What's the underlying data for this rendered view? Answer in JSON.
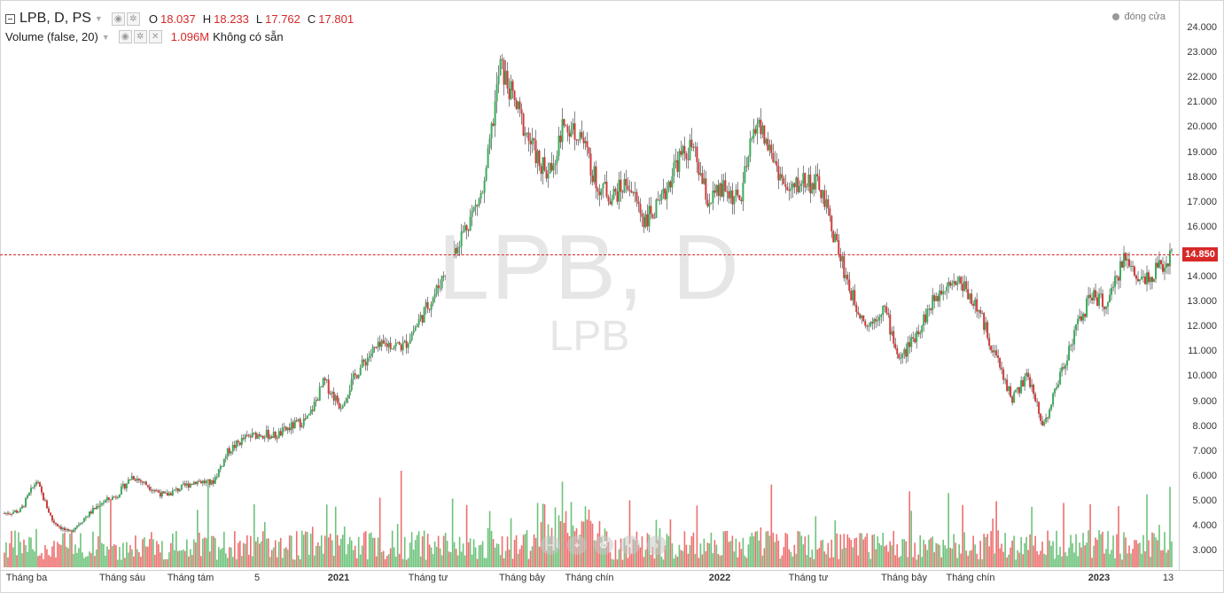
{
  "legend": {
    "symbol_title": "LPB, D, PS",
    "ohlc": [
      {
        "key": "O",
        "value": "18.037"
      },
      {
        "key": "H",
        "value": "18.233"
      },
      {
        "key": "L",
        "value": "17.762"
      },
      {
        "key": "C",
        "value": "17.801"
      }
    ],
    "volume_study": "Volume (false, 20)",
    "volume_value": "1.096M",
    "volume_na": "Không có sẵn"
  },
  "status_text": "đóng cửa",
  "watermark": {
    "big": "LPB, D",
    "small": "LPB"
  },
  "last_price": "14.850",
  "icons": {
    "collapse": "collapse-icon",
    "caret": "chevron-down-icon",
    "eye": "eye-icon",
    "settings": "gear-icon",
    "remove": "close-icon",
    "nav": [
      "zoom-out-icon",
      "zoom-in-icon",
      "reset-icon",
      "scroll-left-icon",
      "scroll-right-icon"
    ]
  },
  "colors": {
    "up": "#3cab5a",
    "down": "#d23a3a",
    "vol_up": "#6cc27a",
    "vol_down": "#ee6e6e",
    "price_line": "#d72828"
  },
  "y_ticks": [
    "24.000",
    "23.000",
    "22.000",
    "21.000",
    "20.000",
    "19.000",
    "18.000",
    "17.000",
    "16.000",
    "15.000",
    "14.000",
    "13.000",
    "12.000",
    "11.000",
    "10.000",
    "9.000",
    "8.000",
    "7.000",
    "6.000",
    "5.000",
    "4.000",
    "3.000"
  ],
  "x_ticks": [
    {
      "label": "Tháng ba",
      "bold": false
    },
    {
      "label": "Tháng sáu",
      "bold": false
    },
    {
      "label": "Tháng tám",
      "bold": false
    },
    {
      "label": "5",
      "bold": false
    },
    {
      "label": "2021",
      "bold": true
    },
    {
      "label": "Tháng tư",
      "bold": false
    },
    {
      "label": "Tháng bảy",
      "bold": false
    },
    {
      "label": "Tháng chín",
      "bold": false
    },
    {
      "label": "2022",
      "bold": true
    },
    {
      "label": "Tháng tư",
      "bold": false
    },
    {
      "label": "Tháng bảy",
      "bold": false
    },
    {
      "label": "Tháng chín",
      "bold": false
    },
    {
      "label": "2023",
      "bold": true
    },
    {
      "label": "13",
      "bold": false
    }
  ],
  "chart_data": {
    "type": "candlestick",
    "ylim": [
      2.5,
      24.5
    ],
    "grid": false,
    "price_path_close": [
      4.5,
      4.6,
      5.8,
      4.2,
      3.7,
      4.3,
      4.9,
      5.2,
      6.0,
      5.6,
      5.2,
      5.5,
      5.8,
      5.7,
      7.0,
      7.5,
      7.7,
      7.6,
      8.0,
      8.3,
      9.8,
      8.8,
      10.1,
      11.0,
      11.3,
      11.2,
      12.3,
      13.4,
      14.9,
      16.2,
      17.5,
      22.5,
      20.8,
      19.2,
      18.0,
      20.1,
      19.8,
      17.8,
      17.2,
      17.8,
      16.3,
      16.8,
      18.6,
      19.2,
      17.0,
      17.5,
      17.0,
      20.3,
      18.9,
      17.3,
      17.9,
      17.6,
      15.4,
      13.2,
      12.0,
      12.8,
      10.6,
      11.7,
      12.9,
      13.9,
      13.7,
      12.5,
      10.8,
      9.1,
      10.0,
      8.0,
      10.0,
      11.9,
      13.3,
      12.8,
      14.8,
      13.9,
      14.2,
      14.85
    ],
    "volume_ylim": [
      0,
      7.0
    ]
  },
  "nav_symbols": [
    "−",
    "+",
    "↺",
    "‹",
    "›"
  ]
}
